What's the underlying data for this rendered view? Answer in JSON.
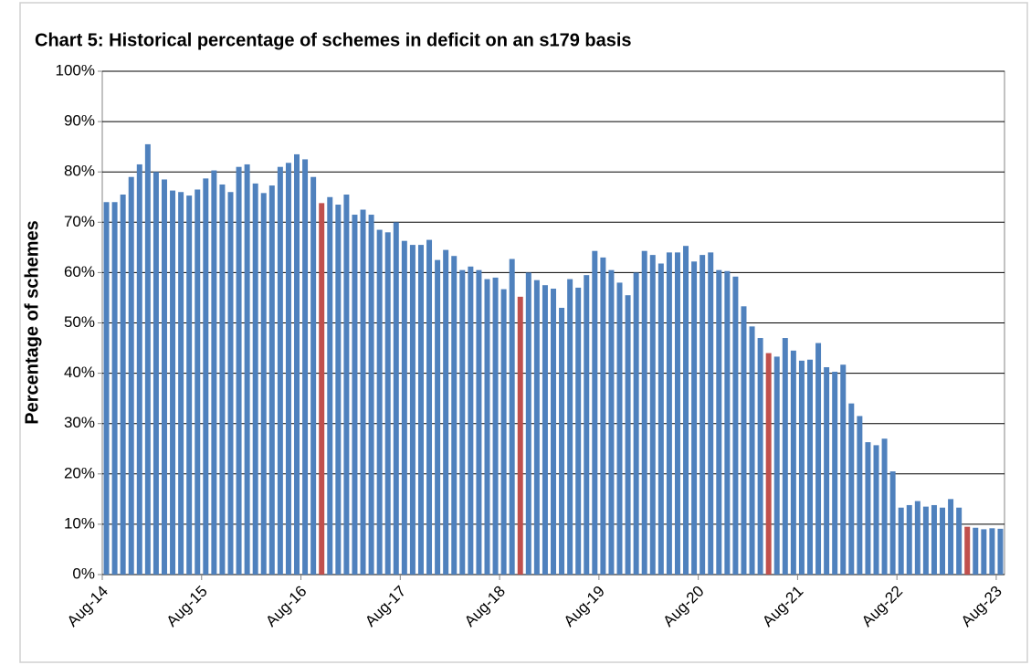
{
  "chart_data": {
    "type": "bar",
    "title": "Chart 5: Historical percentage of schemes in deficit on an s179 basis",
    "y_label": "Percentage of schemes",
    "categories": [
      "Aug-14",
      null,
      null,
      null,
      null,
      null,
      null,
      null,
      null,
      null,
      null,
      null,
      "Aug-15",
      null,
      null,
      null,
      null,
      null,
      null,
      null,
      null,
      null,
      null,
      null,
      "Aug-16",
      null,
      null,
      null,
      null,
      null,
      null,
      null,
      null,
      null,
      null,
      null,
      "Aug-17",
      null,
      null,
      null,
      null,
      null,
      null,
      null,
      null,
      null,
      null,
      null,
      "Aug-18",
      null,
      null,
      null,
      null,
      null,
      null,
      null,
      null,
      null,
      null,
      null,
      "Aug-19",
      null,
      null,
      null,
      null,
      null,
      null,
      null,
      null,
      null,
      null,
      null,
      "Aug-20",
      null,
      null,
      null,
      null,
      null,
      null,
      null,
      null,
      null,
      null,
      null,
      "Aug-21",
      null,
      null,
      null,
      null,
      null,
      null,
      null,
      null,
      null,
      null,
      null,
      "Aug-22",
      null,
      null,
      null,
      null,
      null,
      null,
      null,
      null,
      null,
      null,
      null,
      "Aug-23"
    ],
    "values": [
      74,
      74,
      75.5,
      79,
      81.5,
      85.5,
      80,
      78.5,
      76.3,
      76,
      75.3,
      76.5,
      78.7,
      80.3,
      77.5,
      76,
      81,
      81.5,
      77.7,
      75.8,
      77.3,
      81,
      81.8,
      83.5,
      82.5,
      79,
      73.8,
      75,
      73.5,
      75.5,
      71.5,
      72.5,
      71.5,
      68.5,
      68,
      70,
      66.3,
      65.5,
      65.5,
      66.5,
      62.5,
      64.5,
      63.3,
      60.5,
      61.2,
      60.5,
      58.7,
      59,
      56.7,
      62.7,
      55.2,
      60,
      58.5,
      57.5,
      56.8,
      53,
      58.7,
      57,
      59.5,
      64.3,
      63,
      60.5,
      58,
      55.5,
      60,
      64.3,
      63.5,
      61.8,
      64,
      64,
      65.3,
      62.2,
      63.5,
      64,
      60.5,
      60.3,
      59.2,
      53.3,
      49.3,
      47,
      44,
      43.3,
      47,
      44.5,
      42.5,
      42.7,
      46,
      41.2,
      40.3,
      41.7,
      34,
      31.5,
      26.3,
      25.7,
      27,
      20.5,
      13.3,
      13.8,
      14.6,
      13.5,
      13.8,
      13.3,
      15,
      13.3,
      9.5,
      9.3,
      9,
      9.2,
      9.1
    ],
    "colors": [
      "#4f81bd",
      "#4f81bd",
      "#4f81bd",
      "#4f81bd",
      "#4f81bd",
      "#4f81bd",
      "#4f81bd",
      "#4f81bd",
      "#4f81bd",
      "#4f81bd",
      "#4f81bd",
      "#4f81bd",
      "#4f81bd",
      "#4f81bd",
      "#4f81bd",
      "#4f81bd",
      "#4f81bd",
      "#4f81bd",
      "#4f81bd",
      "#4f81bd",
      "#4f81bd",
      "#4f81bd",
      "#4f81bd",
      "#4f81bd",
      "#4f81bd",
      "#4f81bd",
      "#c0504d",
      "#4f81bd",
      "#4f81bd",
      "#4f81bd",
      "#4f81bd",
      "#4f81bd",
      "#4f81bd",
      "#4f81bd",
      "#4f81bd",
      "#4f81bd",
      "#4f81bd",
      "#4f81bd",
      "#4f81bd",
      "#4f81bd",
      "#4f81bd",
      "#4f81bd",
      "#4f81bd",
      "#4f81bd",
      "#4f81bd",
      "#4f81bd",
      "#4f81bd",
      "#4f81bd",
      "#4f81bd",
      "#4f81bd",
      "#c0504d",
      "#4f81bd",
      "#4f81bd",
      "#4f81bd",
      "#4f81bd",
      "#4f81bd",
      "#4f81bd",
      "#4f81bd",
      "#4f81bd",
      "#4f81bd",
      "#4f81bd",
      "#4f81bd",
      "#4f81bd",
      "#4f81bd",
      "#4f81bd",
      "#4f81bd",
      "#4f81bd",
      "#4f81bd",
      "#4f81bd",
      "#4f81bd",
      "#4f81bd",
      "#4f81bd",
      "#4f81bd",
      "#4f81bd",
      "#4f81bd",
      "#4f81bd",
      "#4f81bd",
      "#4f81bd",
      "#4f81bd",
      "#4f81bd",
      "#c0504d",
      "#4f81bd",
      "#4f81bd",
      "#4f81bd",
      "#4f81bd",
      "#4f81bd",
      "#4f81bd",
      "#4f81bd",
      "#4f81bd",
      "#4f81bd",
      "#4f81bd",
      "#4f81bd",
      "#4f81bd",
      "#4f81bd",
      "#4f81bd",
      "#4f81bd",
      "#4f81bd",
      "#4f81bd",
      "#4f81bd",
      "#4f81bd",
      "#4f81bd",
      "#4f81bd",
      "#4f81bd",
      "#4f81bd",
      "#c0504d",
      "#4f81bd",
      "#4f81bd",
      "#4f81bd",
      "#4f81bd"
    ],
    "ylim": [
      0,
      100
    ],
    "yticks": [
      {
        "value": 0,
        "label": "0%"
      },
      {
        "value": 10,
        "label": "10%"
      },
      {
        "value": 20,
        "label": "20%"
      },
      {
        "value": 30,
        "label": "30%"
      },
      {
        "value": 40,
        "label": "40%"
      },
      {
        "value": 50,
        "label": "50%"
      },
      {
        "value": 60,
        "label": "60%"
      },
      {
        "value": 70,
        "label": "70%"
      },
      {
        "value": 80,
        "label": "80%"
      },
      {
        "value": 90,
        "label": "90%"
      },
      {
        "value": 100,
        "label": "100%"
      }
    ],
    "grid": true
  }
}
